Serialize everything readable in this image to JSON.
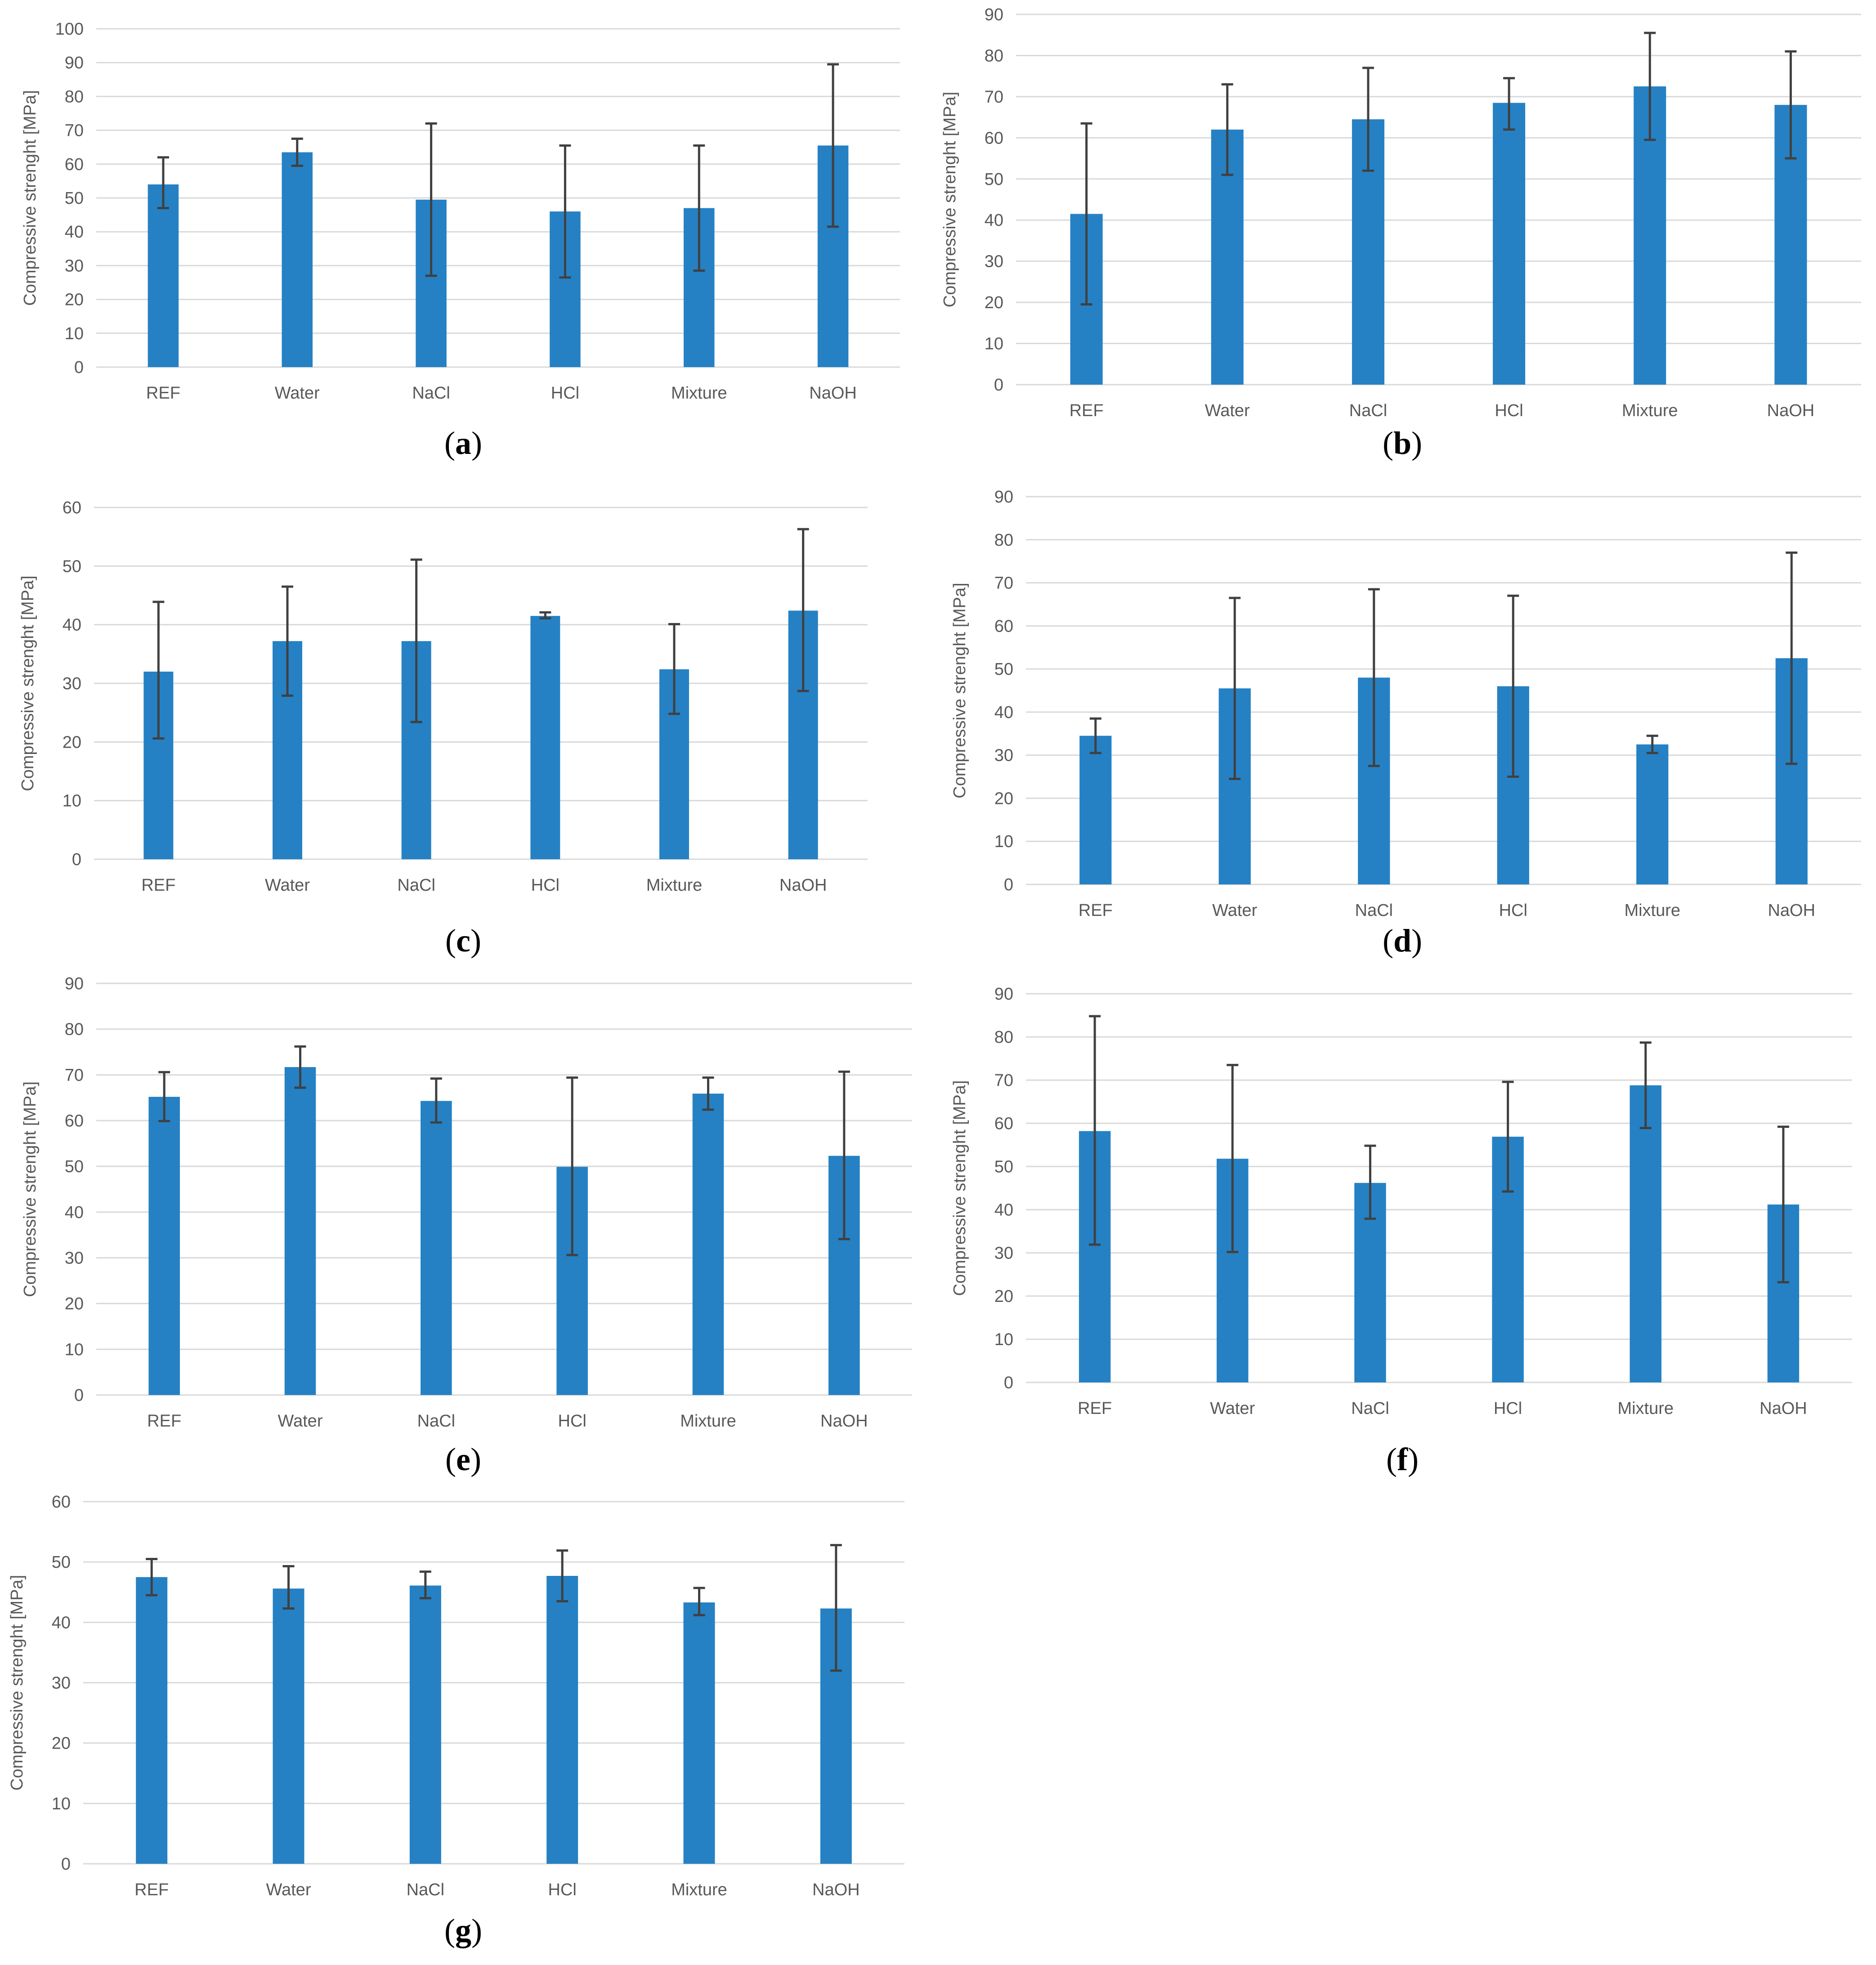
{
  "colors": {
    "bar": "#2581c4",
    "error": "#404040",
    "grid": "#d9d9d9",
    "text": "#595959"
  },
  "chart_data": [
    {
      "id": "a",
      "caption": "a",
      "type": "bar",
      "ylabel": "Compressive strenght [MPa]",
      "ylim": [
        0,
        100
      ],
      "yticks": [
        0,
        10,
        20,
        30,
        40,
        50,
        60,
        70,
        80,
        90,
        100
      ],
      "categories": [
        "REF",
        "Water",
        "NaCl",
        "HCl",
        "Mixture",
        "NaOH"
      ],
      "values": [
        54,
        63.5,
        49.5,
        46,
        47,
        65.5
      ],
      "error_upper": [
        62,
        67.5,
        72,
        65.5,
        65.5,
        89.5
      ],
      "error_lower": [
        47,
        59.5,
        27,
        26.5,
        28.5,
        41.5
      ]
    },
    {
      "id": "b",
      "caption": "b",
      "type": "bar",
      "ylabel": "Compressive strenght [MPa]",
      "ylim": [
        0,
        90
      ],
      "yticks": [
        0,
        10,
        20,
        30,
        40,
        50,
        60,
        70,
        80,
        90
      ],
      "categories": [
        "REF",
        "Water",
        "NaCl",
        "HCl",
        "Mixture",
        "NaOH"
      ],
      "values": [
        41.5,
        62,
        64.5,
        68.5,
        72.5,
        68
      ],
      "error_upper": [
        63.5,
        73,
        77,
        74.5,
        85.5,
        81
      ],
      "error_lower": [
        19.5,
        51,
        52,
        62,
        59.5,
        55
      ]
    },
    {
      "id": "c",
      "caption": "c",
      "type": "bar",
      "ylabel": "Compressive strenght [MPa]",
      "ylim": [
        0,
        60
      ],
      "yticks": [
        0,
        10,
        20,
        30,
        40,
        50,
        60
      ],
      "categories": [
        "REF",
        "Water",
        "NaCl",
        "HCl",
        "Mixture",
        "NaOH"
      ],
      "values": [
        32,
        37.2,
        37.2,
        41.5,
        32.4,
        42.4
      ],
      "error_upper": [
        43.9,
        46.5,
        51.1,
        42.1,
        40.1,
        56.3
      ],
      "error_lower": [
        20.6,
        27.9,
        23.4,
        41.1,
        24.8,
        28.7
      ]
    },
    {
      "id": "d",
      "caption": "d",
      "type": "bar",
      "ylabel": "Compressive strenght [MPa]",
      "ylim": [
        0,
        90
      ],
      "yticks": [
        0,
        10,
        20,
        30,
        40,
        50,
        60,
        70,
        80,
        90
      ],
      "categories": [
        "REF",
        "Water",
        "NaCl",
        "HCl",
        "Mixture",
        "NaOH"
      ],
      "values": [
        34.5,
        45.5,
        48,
        46,
        32.5,
        52.5
      ],
      "error_upper": [
        38.5,
        66.5,
        68.5,
        67,
        34.5,
        77
      ],
      "error_lower": [
        30.5,
        24.5,
        27.5,
        25,
        30.5,
        28
      ]
    },
    {
      "id": "e",
      "caption": "e",
      "type": "bar",
      "ylabel": "Compressive strenght [MPa]",
      "ylim": [
        0,
        90
      ],
      "yticks": [
        0,
        10,
        20,
        30,
        40,
        50,
        60,
        70,
        80,
        90
      ],
      "categories": [
        "REF",
        "Water",
        "NaCl",
        "HCl",
        "Mixture",
        "NaOH"
      ],
      "values": [
        65.2,
        71.7,
        64.3,
        49.9,
        65.9,
        52.3
      ],
      "error_upper": [
        70.6,
        76.2,
        69.2,
        69.4,
        69.4,
        70.7
      ],
      "error_lower": [
        59.9,
        67.2,
        59.6,
        30.6,
        62.4,
        34.1
      ]
    },
    {
      "id": "f",
      "caption": "f",
      "type": "bar",
      "ylabel": "Compressive strenght [MPa]",
      "ylim": [
        0,
        90
      ],
      "yticks": [
        0,
        10,
        20,
        30,
        40,
        50,
        60,
        70,
        80,
        90
      ],
      "categories": [
        "REF",
        "Water",
        "NaCl",
        "HCl",
        "Mixture",
        "NaOH"
      ],
      "values": [
        58.2,
        51.8,
        46.2,
        56.9,
        68.8,
        41.2
      ],
      "error_upper": [
        84.8,
        73.5,
        54.8,
        69.6,
        78.7,
        59.2
      ],
      "error_lower": [
        31.9,
        30.2,
        37.9,
        44.2,
        58.9,
        23.2
      ]
    },
    {
      "id": "g",
      "caption": "g",
      "type": "bar",
      "ylabel": "Compressive strenght [MPa]",
      "ylim": [
        0,
        60
      ],
      "yticks": [
        0,
        10,
        20,
        30,
        40,
        50,
        60
      ],
      "categories": [
        "REF",
        "Water",
        "NaCl",
        "HCl",
        "Mixture",
        "NaOH"
      ],
      "values": [
        47.5,
        45.6,
        46.1,
        47.7,
        43.3,
        42.3
      ],
      "error_upper": [
        50.5,
        49.3,
        48.4,
        51.9,
        45.7,
        52.8
      ],
      "error_lower": [
        44.5,
        42.3,
        44,
        43.5,
        41.2,
        32
      ]
    }
  ]
}
